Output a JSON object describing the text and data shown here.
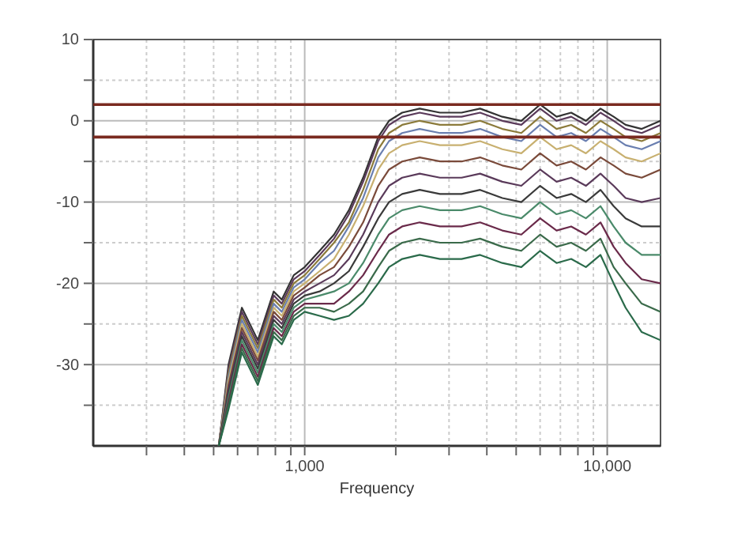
{
  "chart_data": {
    "type": "line",
    "xlabel": "Frequency",
    "log": "x",
    "grid": true,
    "line_style": "solid",
    "xlim": [
      200,
      15000
    ],
    "xticks": [
      {
        "value": 300,
        "label": null
      },
      {
        "value": 400,
        "label": null
      },
      {
        "value": 500,
        "label": null
      },
      {
        "value": 600,
        "label": null
      },
      {
        "value": 700,
        "label": null
      },
      {
        "value": 800,
        "label": null
      },
      {
        "value": 900,
        "label": null
      },
      {
        "value": 1000,
        "label": "1,000"
      },
      {
        "value": 2000,
        "label": null
      },
      {
        "value": 3000,
        "label": null
      },
      {
        "value": 4000,
        "label": null
      },
      {
        "value": 5000,
        "label": null
      },
      {
        "value": 6000,
        "label": null
      },
      {
        "value": 7000,
        "label": null
      },
      {
        "value": 8000,
        "label": null
      },
      {
        "value": 9000,
        "label": null
      },
      {
        "value": 10000,
        "label": "10,000"
      }
    ],
    "ylim": [
      -40,
      10
    ],
    "yticks": [
      {
        "value": -35,
        "label": null
      },
      -30,
      {
        "value": -25,
        "label": null
      },
      -20,
      {
        "value": -15,
        "label": null
      },
      -10,
      {
        "value": -5,
        "label": null
      },
      0,
      {
        "value": 5,
        "label": null
      },
      10
    ],
    "ref_lines": [
      {
        "axis": "y",
        "value": 2,
        "color": "#7a2a20"
      },
      {
        "axis": "y",
        "value": -2,
        "color": "#7a2a20"
      }
    ],
    "x": [
      520,
      560,
      620,
      700,
      790,
      840,
      920,
      1000,
      1120,
      1250,
      1400,
      1560,
      1750,
      1900,
      2100,
      2400,
      2800,
      3300,
      3800,
      4500,
      5200,
      6000,
      6800,
      7600,
      8500,
      9500,
      10500,
      11500,
      13000,
      15000
    ],
    "series": [
      {
        "color": "#333333",
        "values": [
          -40,
          -30,
          -23,
          -27,
          -21,
          -22,
          -19,
          -18,
          -16,
          -14,
          -11,
          -7,
          -2,
          0,
          1,
          1.5,
          1,
          1,
          1.5,
          0.5,
          0,
          2,
          0.5,
          1,
          0,
          1.5,
          0.5,
          -0.5,
          -1,
          0
        ]
      },
      {
        "color": "#5a3a5a",
        "values": [
          -40,
          -30.5,
          -23.5,
          -27.5,
          -21.5,
          -22.5,
          -19.5,
          -18.5,
          -16.5,
          -14.5,
          -11.5,
          -7.5,
          -2.5,
          -0.5,
          0.5,
          1,
          0.5,
          0.5,
          1,
          0,
          -0.5,
          1.5,
          0,
          0.5,
          -0.5,
          1,
          0,
          -1,
          -1.5,
          -0.5
        ]
      },
      {
        "color": "#8b7a3a",
        "values": [
          -40,
          -31,
          -24,
          -28,
          -22,
          -23,
          -20,
          -19,
          -17,
          -15,
          -12.5,
          -8.5,
          -3.5,
          -1.5,
          -0.5,
          0,
          -0.5,
          -0.5,
          0,
          -1,
          -1.5,
          0.5,
          -1,
          -0.5,
          -1.5,
          0,
          -1,
          -2,
          -2.5,
          -1.5
        ]
      },
      {
        "color": "#6a7fb0",
        "values": [
          -40,
          -31.5,
          -24.5,
          -28.5,
          -22.5,
          -23.5,
          -20.5,
          -19.5,
          -17.5,
          -16,
          -13,
          -9.5,
          -4.5,
          -2.5,
          -1.5,
          -1,
          -1.5,
          -1.5,
          -1,
          -2,
          -2.5,
          -0.5,
          -2,
          -1.5,
          -2.5,
          -1,
          -2,
          -3,
          -3.5,
          -2.5
        ]
      },
      {
        "color": "#c8b070",
        "values": [
          -40,
          -32,
          -25,
          -29,
          -23,
          -24,
          -21,
          -20,
          -18.5,
          -17,
          -14,
          -10.5,
          -6,
          -4,
          -3,
          -2.5,
          -3,
          -3,
          -2.5,
          -3.5,
          -4,
          -2,
          -3.5,
          -3,
          -4,
          -2.5,
          -3.5,
          -4.5,
          -5,
          -4
        ]
      },
      {
        "color": "#7a4a3a",
        "values": [
          -40,
          -32.5,
          -25.5,
          -29.5,
          -23.5,
          -24.5,
          -21.5,
          -20.5,
          -19,
          -18,
          -15.5,
          -12.5,
          -8,
          -6,
          -5,
          -4.5,
          -5,
          -5,
          -4.5,
          -5.5,
          -6,
          -4,
          -5.5,
          -5,
          -6,
          -4.5,
          -5.5,
          -6.5,
          -7,
          -6
        ]
      },
      {
        "color": "#5a3a5a",
        "values": [
          -40,
          -33,
          -26,
          -30,
          -24,
          -25,
          -22,
          -21,
          -20,
          -19,
          -17,
          -14,
          -10,
          -8,
          -7,
          -6.5,
          -7,
          -7,
          -6.5,
          -7.5,
          -8,
          -6,
          -7.5,
          -7,
          -8,
          -6.5,
          -8,
          -9.5,
          -10,
          -9.5
        ]
      },
      {
        "color": "#3a3a3a",
        "values": [
          -40,
          -33.5,
          -26.5,
          -30.5,
          -24.5,
          -25.5,
          -22.5,
          -21.5,
          -21,
          -20,
          -18.5,
          -15.5,
          -12,
          -10,
          -9,
          -8.5,
          -9,
          -9,
          -8.5,
          -9.5,
          -10,
          -8,
          -9.5,
          -9,
          -10,
          -8.5,
          -10.5,
          -12,
          -13,
          -13
        ]
      },
      {
        "color": "#4a8a6a",
        "values": [
          -40,
          -34,
          -27,
          -31,
          -25,
          -26,
          -23,
          -22,
          -21.5,
          -21,
          -20,
          -17.5,
          -14,
          -12,
          -11,
          -10.5,
          -11,
          -11,
          -10.5,
          -11.5,
          -12,
          -10,
          -11.5,
          -11,
          -12,
          -10.5,
          -13,
          -15,
          -16.5,
          -16.5
        ]
      },
      {
        "color": "#6a2a4a",
        "values": [
          -40,
          -34.5,
          -27.5,
          -31.5,
          -25.5,
          -26.5,
          -23.5,
          -22.5,
          -22.5,
          -22.5,
          -21,
          -19,
          -16,
          -14,
          -13,
          -12.5,
          -13,
          -13,
          -12.5,
          -13.5,
          -14,
          -12,
          -13.5,
          -13,
          -14,
          -12.5,
          -15.5,
          -17.5,
          -19.5,
          -20
        ]
      },
      {
        "color": "#3a6a4a",
        "values": [
          -40,
          -35,
          -28,
          -32,
          -26,
          -27,
          -24,
          -23,
          -23,
          -23.5,
          -22.5,
          -21,
          -18,
          -16,
          -15,
          -14.5,
          -15,
          -15,
          -14.5,
          -15.5,
          -16,
          -14,
          -15.5,
          -15,
          -16,
          -14.5,
          -18,
          -20,
          -22.5,
          -23.5
        ]
      },
      {
        "color": "#2a6a4a",
        "values": [
          -40,
          -35.5,
          -28.5,
          -32.5,
          -26.5,
          -27.5,
          -24.5,
          -23.5,
          -24,
          -24.5,
          -24,
          -22.5,
          -20,
          -18,
          -17,
          -16.5,
          -17,
          -17,
          -16.5,
          -17.5,
          -18,
          -16,
          -17.5,
          -17,
          -18,
          -16.5,
          -20,
          -23,
          -26,
          -27
        ]
      }
    ]
  }
}
